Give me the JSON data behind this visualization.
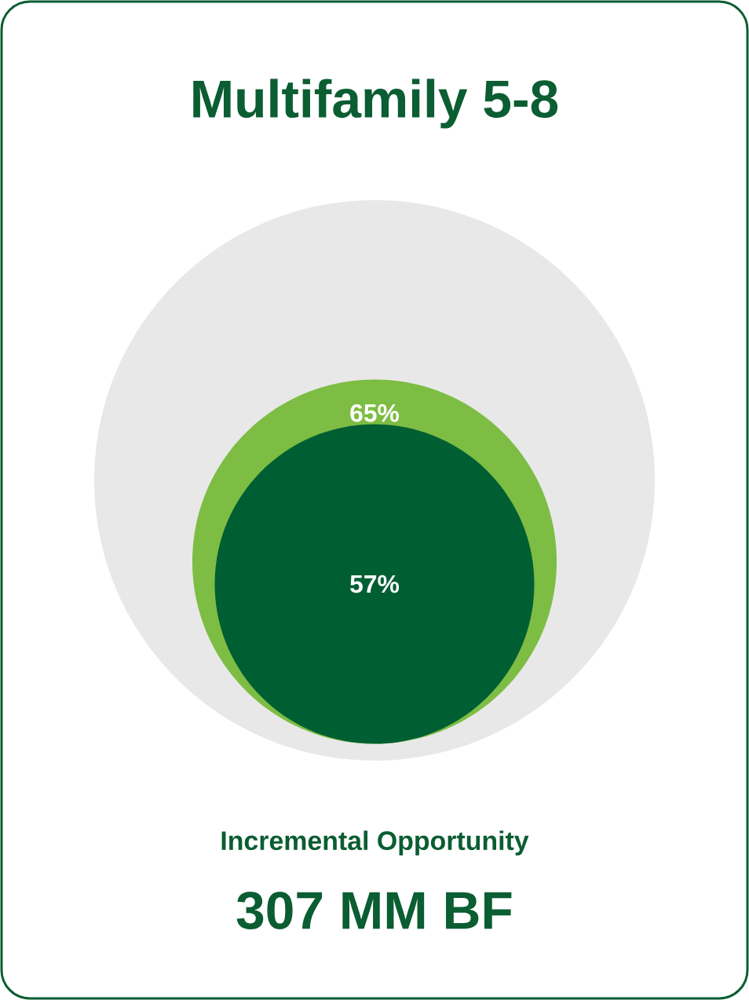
{
  "chart_data": {
    "type": "other",
    "title": "Multifamily 5-8",
    "values": [
      65,
      57
    ],
    "value_labels": [
      "65%",
      "57%"
    ],
    "colors": [
      "#7dbd43",
      "#005f32"
    ],
    "annotations": [
      "Incremental Opportunity",
      "307 MM BF"
    ]
  }
}
